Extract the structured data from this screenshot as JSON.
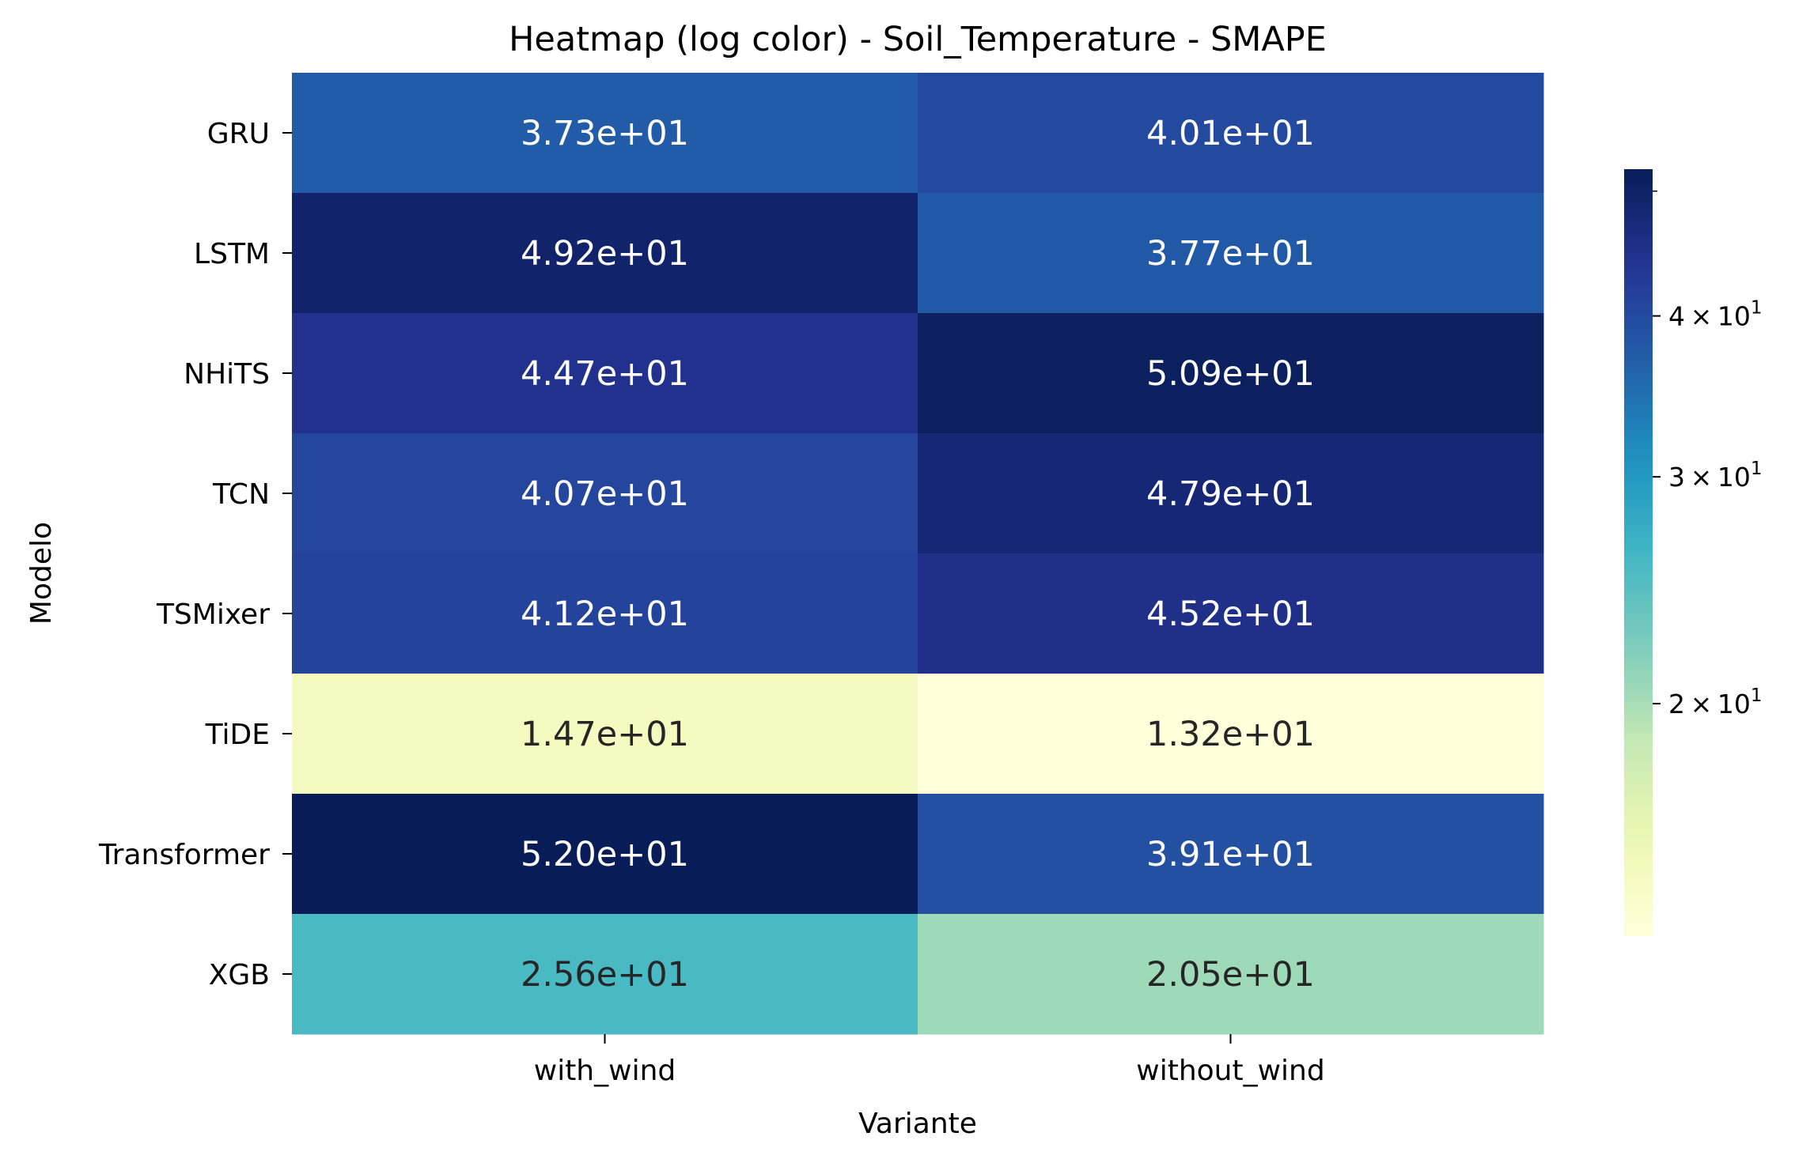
{
  "chart_data": {
    "type": "heatmap",
    "title": "Heatmap (log color) - Soil_Temperature - SMAPE",
    "xlabel": "Variante",
    "ylabel": "Modelo",
    "columns": [
      "with_wind",
      "without_wind"
    ],
    "rows": [
      "GRU",
      "LSTM",
      "NHiTS",
      "TCN",
      "TSMixer",
      "TiDE",
      "Transformer",
      "XGB"
    ],
    "values": [
      [
        37.3,
        40.1
      ],
      [
        49.2,
        37.7
      ],
      [
        44.7,
        50.9
      ],
      [
        40.7,
        47.9
      ],
      [
        41.2,
        45.2
      ],
      [
        14.7,
        13.2
      ],
      [
        52.0,
        39.1
      ],
      [
        25.6,
        20.5
      ]
    ],
    "cell_labels": [
      [
        "3.73e+01",
        "4.01e+01"
      ],
      [
        "4.92e+01",
        "3.77e+01"
      ],
      [
        "4.47e+01",
        "5.09e+01"
      ],
      [
        "4.07e+01",
        "4.79e+01"
      ],
      [
        "4.12e+01",
        "4.52e+01"
      ],
      [
        "1.47e+01",
        "1.32e+01"
      ],
      [
        "5.20e+01",
        "3.91e+01"
      ],
      [
        "2.56e+01",
        "2.05e+01"
      ]
    ],
    "color_scale": "log",
    "colormap": "YlGnBu",
    "vmin": 13.2,
    "vmax": 52.0,
    "colorbar": {
      "ticks": [
        {
          "value": 20,
          "mantissa": "2",
          "exponent": "1"
        },
        {
          "value": 30,
          "mantissa": "3",
          "exponent": "1"
        },
        {
          "value": 40,
          "mantissa": "4",
          "exponent": "1"
        }
      ],
      "base": "10",
      "times": "×"
    }
  }
}
